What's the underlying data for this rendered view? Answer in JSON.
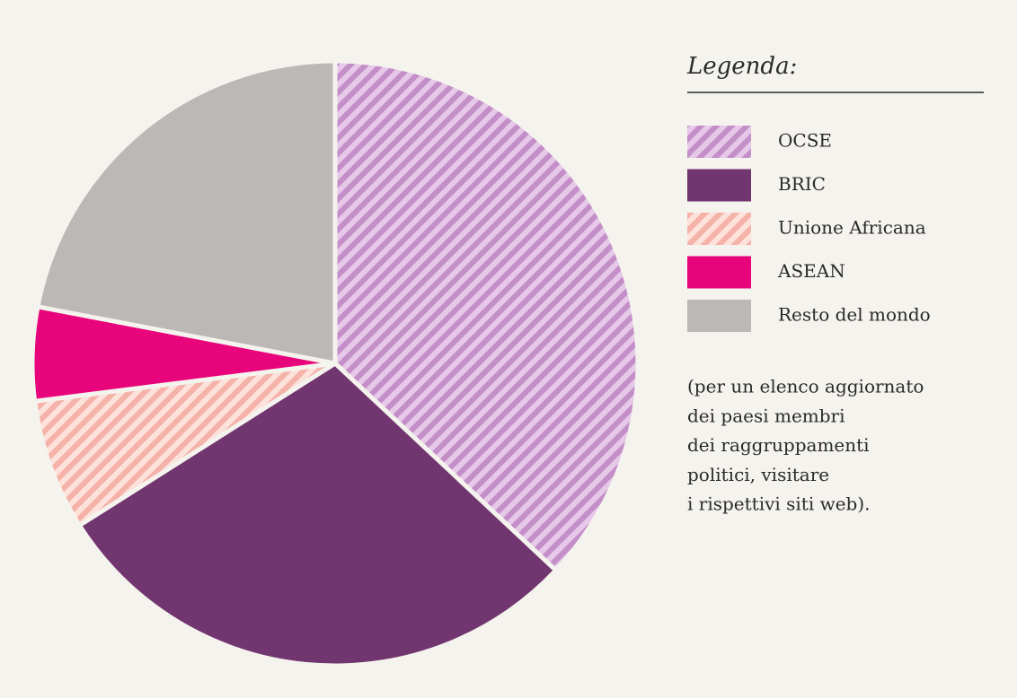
{
  "chart_data": {
    "type": "pie",
    "legend_title": "Legenda:",
    "categories": [
      "OCSE",
      "BRIC",
      "Unione Africana",
      "ASEAN",
      "Resto del mondo"
    ],
    "values": [
      37,
      29,
      7,
      5,
      22
    ],
    "colors": [
      "#c48ec8",
      "#71356f",
      "#f4b2a9",
      "#e8047a",
      "#bbb8b5"
    ],
    "hatch_colors": [
      "#e6c8e8",
      null,
      "#fde2dc",
      null,
      null
    ],
    "note": [
      "(per un elenco aggiornato",
      "dei paesi membri",
      "dei raggruppamenti",
      "politici, visitare",
      "i rispettivi siti web)."
    ]
  }
}
